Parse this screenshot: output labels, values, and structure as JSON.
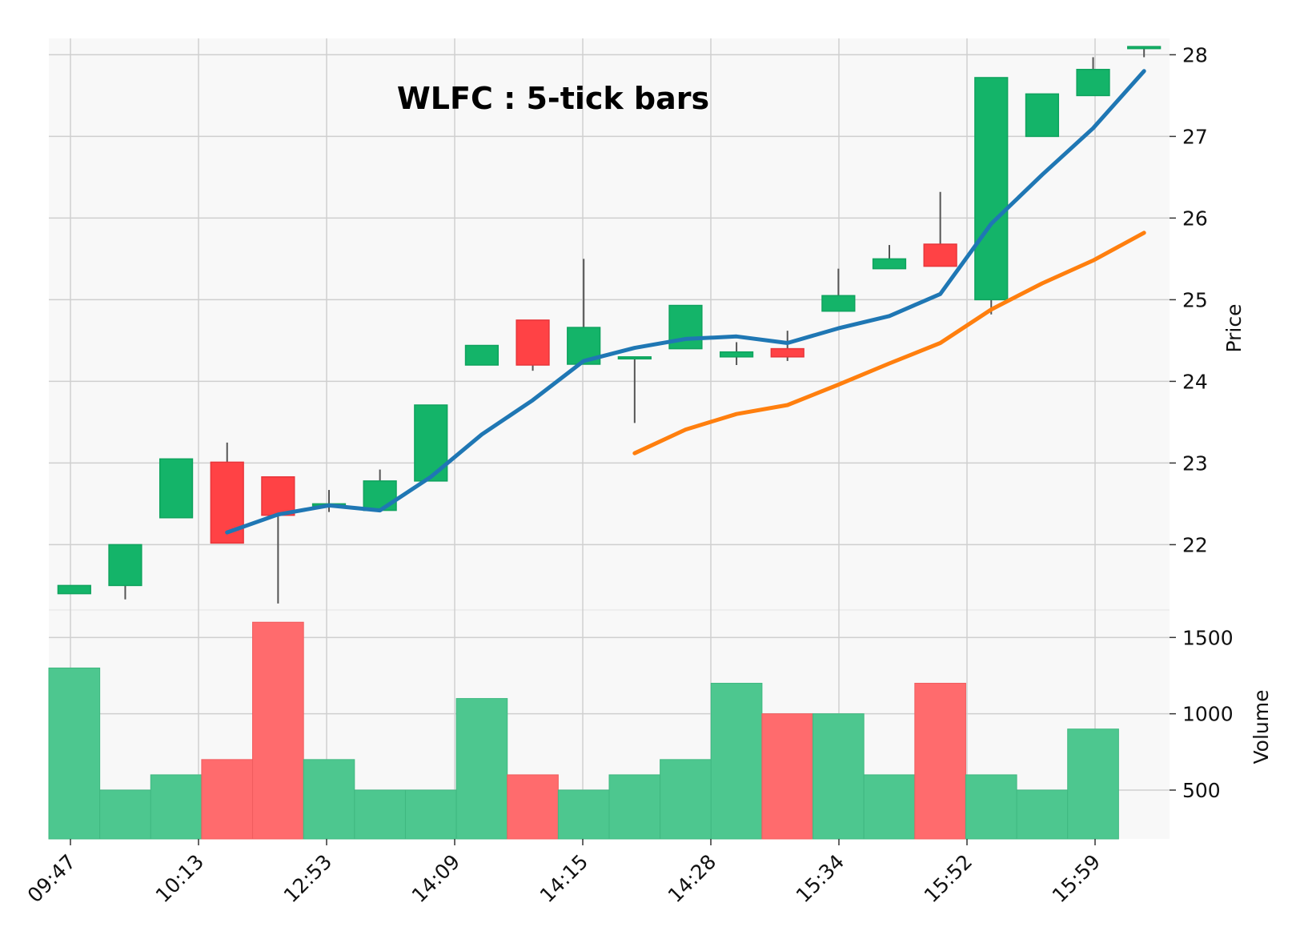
{
  "chart_data": {
    "type": "candlestick",
    "title": "WLFC : 5-tick bars",
    "ylabel": "Price",
    "ylabel_lower": "Volume",
    "ylim": [
      21.2,
      28.2
    ],
    "volume_ylim": [
      180,
      1680
    ],
    "price_ticks": [
      "22",
      "23",
      "24",
      "25",
      "26",
      "27",
      "28"
    ],
    "volume_ticks": [
      "500",
      "1000",
      "1500"
    ],
    "x_tick_labels": [
      "09:47",
      "10:13",
      "12:53",
      "14:09",
      "14:15",
      "14:28",
      "15:34",
      "15:52",
      "15:59"
    ],
    "colors": {
      "up": "#14b469",
      "down": "#ff4245",
      "volume_up": "#4dc78f",
      "volume_down": "#ff6b6d",
      "sma_short": "#1f77b4",
      "sma_long": "#ff7f0e",
      "panel_bg": "#f8f8f8",
      "grid": "#cfcfcf"
    },
    "candles": [
      {
        "open": 21.4,
        "high": 21.5,
        "low": 21.4,
        "close": 21.5,
        "volume": 1300
      },
      {
        "open": 21.5,
        "high": 22.0,
        "low": 21.33,
        "close": 22.0,
        "volume": 500
      },
      {
        "open": 22.33,
        "high": 23.05,
        "low": 22.33,
        "close": 23.05,
        "volume": 600
      },
      {
        "open": 23.01,
        "high": 23.25,
        "low": 22.02,
        "close": 22.02,
        "volume": 700
      },
      {
        "open": 22.83,
        "high": 22.83,
        "low": 21.28,
        "close": 22.36,
        "volume": 1600
      },
      {
        "open": 22.5,
        "high": 22.67,
        "low": 22.4,
        "close": 22.5,
        "volume": 700
      },
      {
        "open": 22.42,
        "high": 22.92,
        "low": 22.42,
        "close": 22.78,
        "volume": 500
      },
      {
        "open": 22.78,
        "high": 23.71,
        "low": 22.78,
        "close": 23.71,
        "volume": 500
      },
      {
        "open": 24.2,
        "high": 24.44,
        "low": 24.2,
        "close": 24.44,
        "volume": 1100
      },
      {
        "open": 24.75,
        "high": 24.75,
        "low": 24.13,
        "close": 24.2,
        "volume": 600
      },
      {
        "open": 24.21,
        "high": 25.5,
        "low": 24.21,
        "close": 24.66,
        "volume": 500
      },
      {
        "open": 24.3,
        "high": 24.3,
        "low": 23.49,
        "close": 24.3,
        "volume": 600
      },
      {
        "open": 24.4,
        "high": 24.93,
        "low": 24.4,
        "close": 24.93,
        "volume": 700
      },
      {
        "open": 24.3,
        "high": 24.48,
        "low": 24.2,
        "close": 24.36,
        "volume": 1200
      },
      {
        "open": 24.4,
        "high": 24.62,
        "low": 24.25,
        "close": 24.3,
        "volume": 1000
      },
      {
        "open": 24.86,
        "high": 25.38,
        "low": 24.86,
        "close": 25.05,
        "volume": 1000
      },
      {
        "open": 25.38,
        "high": 25.67,
        "low": 25.38,
        "close": 25.5,
        "volume": 600
      },
      {
        "open": 25.68,
        "high": 26.32,
        "low": 25.41,
        "close": 25.41,
        "volume": 1200
      },
      {
        "open": 25.0,
        "high": 27.72,
        "low": 24.82,
        "close": 27.72,
        "volume": 600
      },
      {
        "open": 27.0,
        "high": 27.52,
        "low": 27.0,
        "close": 27.52,
        "volume": 500
      },
      {
        "open": 27.5,
        "high": 27.97,
        "low": 27.5,
        "close": 27.82,
        "volume": 900
      },
      {
        "open": 28.1,
        "high": 28.1,
        "low": 27.97,
        "close": 28.1,
        "volume": null
      }
    ],
    "series": [
      {
        "values": [
          null,
          null,
          null,
          22.15,
          22.37,
          22.48,
          22.42,
          22.83,
          23.35,
          23.77,
          24.25,
          24.41,
          24.52,
          24.55,
          24.47,
          24.65,
          24.8,
          25.07,
          25.93,
          26.53,
          27.1,
          27.8
        ]
      },
      {
        "values": [
          null,
          null,
          null,
          null,
          null,
          null,
          null,
          null,
          null,
          null,
          null,
          23.12,
          23.41,
          23.6,
          23.71,
          23.96,
          24.22,
          24.47,
          24.88,
          25.2,
          25.48,
          25.82
        ]
      }
    ]
  }
}
